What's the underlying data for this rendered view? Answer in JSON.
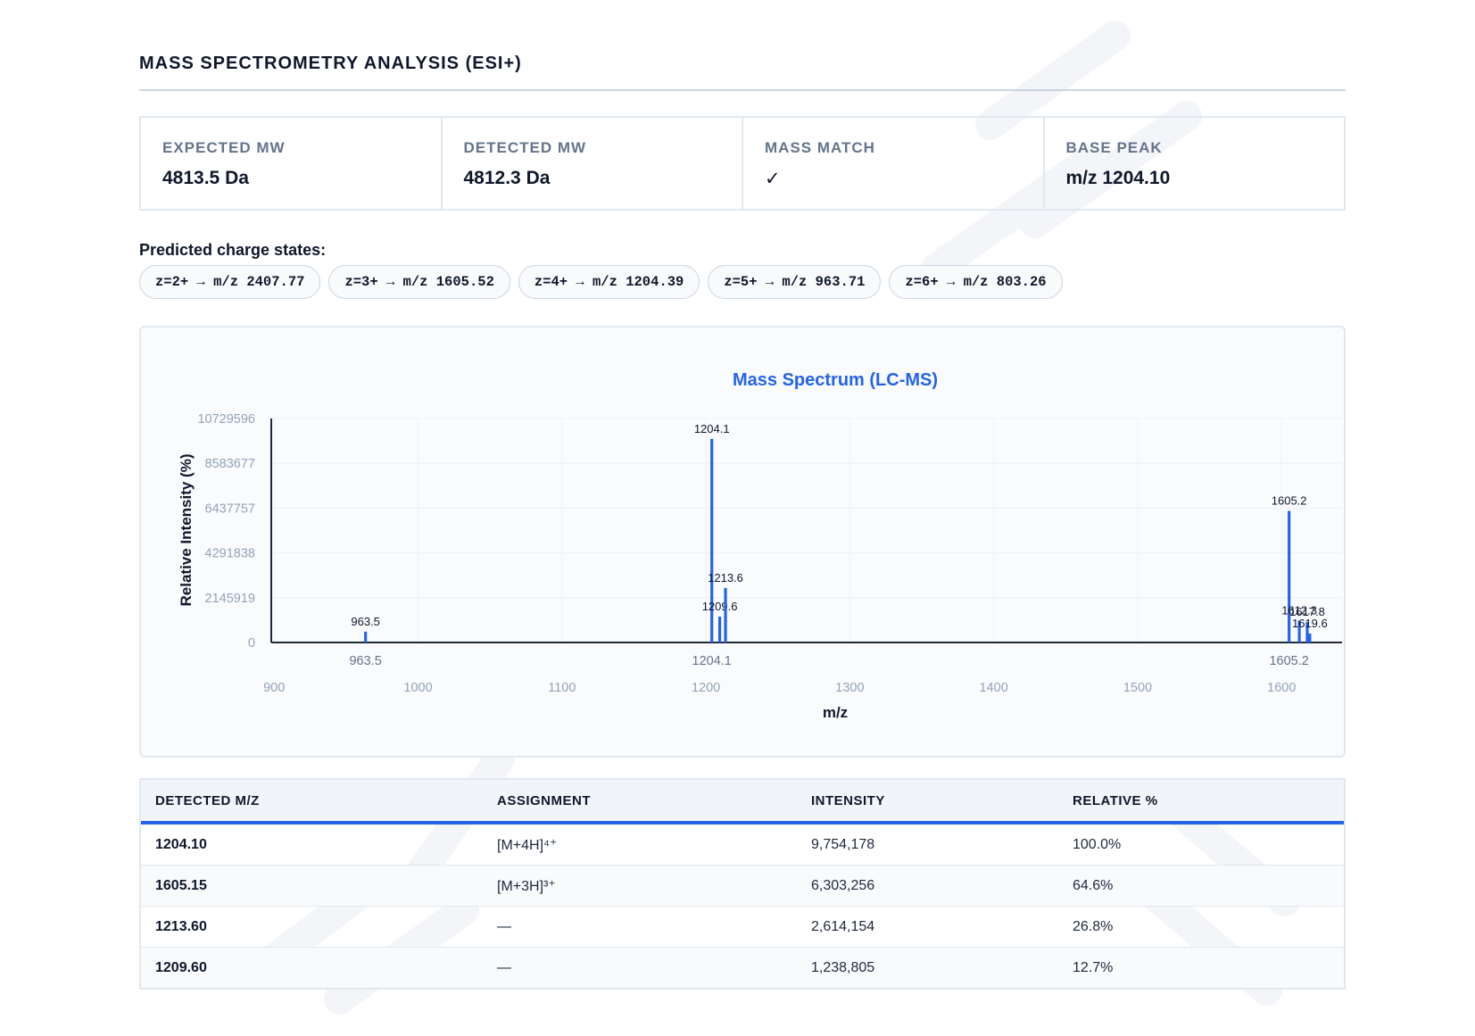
{
  "header": {
    "title": "MASS SPECTROMETRY ANALYSIS (ESI+)"
  },
  "metrics": [
    {
      "label": "EXPECTED MW",
      "value": "4813.5 Da"
    },
    {
      "label": "DETECTED MW",
      "value": "4812.3 Da"
    },
    {
      "label": "MASS MATCH",
      "value": "✓"
    },
    {
      "label": "BASE PEAK",
      "value": "m/z 1204.10"
    }
  ],
  "charge_states": {
    "title": "Predicted charge states:",
    "items": [
      "z=2+ → m/z 2407.77",
      "z=3+ → m/z 1605.52",
      "z=4+ → m/z 1204.39",
      "z=5+ → m/z 963.71",
      "z=6+ → m/z 803.26"
    ]
  },
  "chart_data": {
    "type": "bar",
    "title": "Mass Spectrum (LC-MS)",
    "xlabel": "m/z",
    "ylabel": "Relative Intensity (%)",
    "xlim": [
      898,
      1642
    ],
    "ylim": [
      0,
      10729596
    ],
    "x_ticks": [
      "900",
      "1000",
      "1100",
      "1200",
      "1300",
      "1400",
      "1500",
      "1600"
    ],
    "y_ticks": [
      "0",
      "2145919",
      "4291838",
      "6437757",
      "8583677",
      "10729596"
    ],
    "grid": true,
    "color": "#2563eb",
    "peaks": [
      {
        "x": 963.5,
        "y": 520000,
        "label": "963.5"
      },
      {
        "x": 1204.1,
        "y": 9754178,
        "label": "1204.1"
      },
      {
        "x": 1209.6,
        "y": 1238805,
        "label": "1209.6"
      },
      {
        "x": 1213.6,
        "y": 2614154,
        "label": "1213.6"
      },
      {
        "x": 1605.2,
        "y": 6303256,
        "label": "1605.2"
      },
      {
        "x": 1612.3,
        "y": 1050000,
        "label": "1612.3"
      },
      {
        "x": 1617.8,
        "y": 980000,
        "label": "1617.8"
      },
      {
        "x": 1619.6,
        "y": 430000,
        "label": "1619.6"
      }
    ],
    "axis_peak_labels": [
      {
        "x": 963.5,
        "label": "963.5"
      },
      {
        "x": 1204.1,
        "label": "1204.1"
      },
      {
        "x": 1605.2,
        "label": "1605.2"
      }
    ]
  },
  "table": {
    "headers": [
      "DETECTED M/Z",
      "ASSIGNMENT",
      "INTENSITY",
      "RELATIVE %"
    ],
    "rows": [
      [
        "1204.10",
        "[M+4H]⁴⁺",
        "9,754,178",
        "100.0%"
      ],
      [
        "1605.15",
        "[M+3H]³⁺",
        "6,303,256",
        "64.6%"
      ],
      [
        "1213.60",
        "—",
        "2,614,154",
        "26.8%"
      ],
      [
        "1209.60",
        "—",
        "1,238,805",
        "12.7%"
      ]
    ]
  }
}
